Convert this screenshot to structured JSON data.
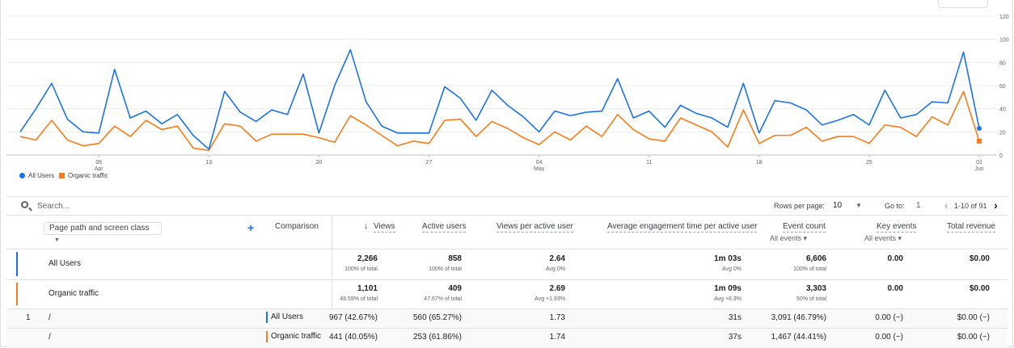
{
  "chart_data": {
    "type": "line",
    "ylim": [
      0,
      120
    ],
    "yticks": [
      "0",
      "20",
      "40",
      "60",
      "80",
      "100",
      "120"
    ],
    "xticks": [
      {
        "label": "06",
        "sub": "Apr",
        "i": 5
      },
      {
        "label": "13",
        "sub": "",
        "i": 12
      },
      {
        "label": "20",
        "sub": "",
        "i": 19
      },
      {
        "label": "27",
        "sub": "",
        "i": 26
      },
      {
        "label": "04",
        "sub": "May",
        "i": 33
      },
      {
        "label": "11",
        "sub": "",
        "i": 40
      },
      {
        "label": "18",
        "sub": "",
        "i": 47
      },
      {
        "label": "25",
        "sub": "",
        "i": 54
      },
      {
        "label": "01",
        "sub": "Jun",
        "i": 61
      }
    ],
    "series": [
      {
        "name": "All Users",
        "color": "#1a73e8",
        "values": [
          20,
          40,
          62,
          31,
          20,
          19,
          74,
          32,
          38,
          27,
          35,
          17,
          5,
          55,
          37,
          29,
          39,
          35,
          70,
          19,
          60,
          91,
          46,
          25,
          19,
          19,
          19,
          59,
          49,
          30,
          56,
          43,
          33,
          20,
          38,
          34,
          37,
          38,
          66,
          32,
          38,
          24,
          43,
          36,
          32,
          24,
          62,
          19,
          47,
          45,
          39,
          26,
          30,
          35,
          26,
          56,
          32,
          35,
          46,
          45,
          89,
          23
        ]
      },
      {
        "name": "Organic traffic",
        "color": "#fa7b17",
        "values": [
          16,
          13,
          30,
          13,
          8,
          10,
          25,
          16,
          30,
          22,
          25,
          6,
          4,
          27,
          25,
          12,
          18,
          18,
          18,
          15,
          11,
          34,
          26,
          17,
          8,
          12,
          10,
          30,
          31,
          16,
          29,
          23,
          15,
          9,
          20,
          13,
          25,
          16,
          35,
          22,
          14,
          12,
          32,
          26,
          20,
          7,
          39,
          10,
          17,
          17,
          24,
          12,
          16,
          16,
          10,
          26,
          24,
          16,
          33,
          26,
          55,
          12
        ]
      }
    ]
  },
  "legend": {
    "all_users": "All Users",
    "organic": "Organic traffic"
  },
  "toolbar": {
    "search_placeholder": "Search...",
    "rows_per_page_label": "Rows per page:",
    "rows_per_page": "10",
    "goto_label": "Go to:",
    "goto_value": "1",
    "range": "1-10 of 91"
  },
  "table": {
    "dimension": "Page path and screen class",
    "comparison": "Comparison",
    "headers": {
      "views": "Views",
      "active_users": "Active users",
      "views_per_user": "Views per active user",
      "avg_eng": "Average engagement time per active user",
      "event_count": "Event count",
      "event_sub": "All events",
      "key_events": "Key events",
      "key_sub": "All events",
      "revenue": "Total revenue"
    },
    "summary": [
      {
        "label": "All Users",
        "color": "#1a73e8",
        "views": "2,266",
        "views_sub": "100% of total",
        "users": "858",
        "users_sub": "100% of total",
        "vpu": "2.64",
        "vpu_sub": "Avg 0%",
        "eng": "1m 03s",
        "eng_sub": "Avg 0%",
        "events": "6,606",
        "events_sub": "100% of total",
        "key": "0.00",
        "rev": "$0.00"
      },
      {
        "label": "Organic traffic",
        "color": "#fa7b17",
        "views": "1,101",
        "views_sub": "48.59% of total",
        "users": "409",
        "users_sub": "47.67% of total",
        "vpu": "2.69",
        "vpu_sub": "Avg +1.93%",
        "eng": "1m 09s",
        "eng_sub": "Avg +8.9%",
        "events": "3,303",
        "events_sub": "50% of total",
        "key": "0.00",
        "rev": "$0.00"
      }
    ],
    "rows": [
      {
        "index": "1",
        "path": "/",
        "segment": "All Users",
        "color": "#1a73e8",
        "views": "967 (42.67%)",
        "users": "560 (65.27%)",
        "vpu": "1.73",
        "eng": "31s",
        "events": "3,091 (46.79%)",
        "key": "0.00 (−)",
        "rev": "$0.00 (−)"
      },
      {
        "index": "",
        "path": "/",
        "segment": "Organic traffic",
        "color": "#fa7b17",
        "views": "441 (40.05%)",
        "users": "253 (61.86%)",
        "vpu": "1.74",
        "eng": "37s",
        "events": "1,467 (44.41%)",
        "key": "0.00 (−)",
        "rev": "$0.00 (−)"
      }
    ]
  }
}
